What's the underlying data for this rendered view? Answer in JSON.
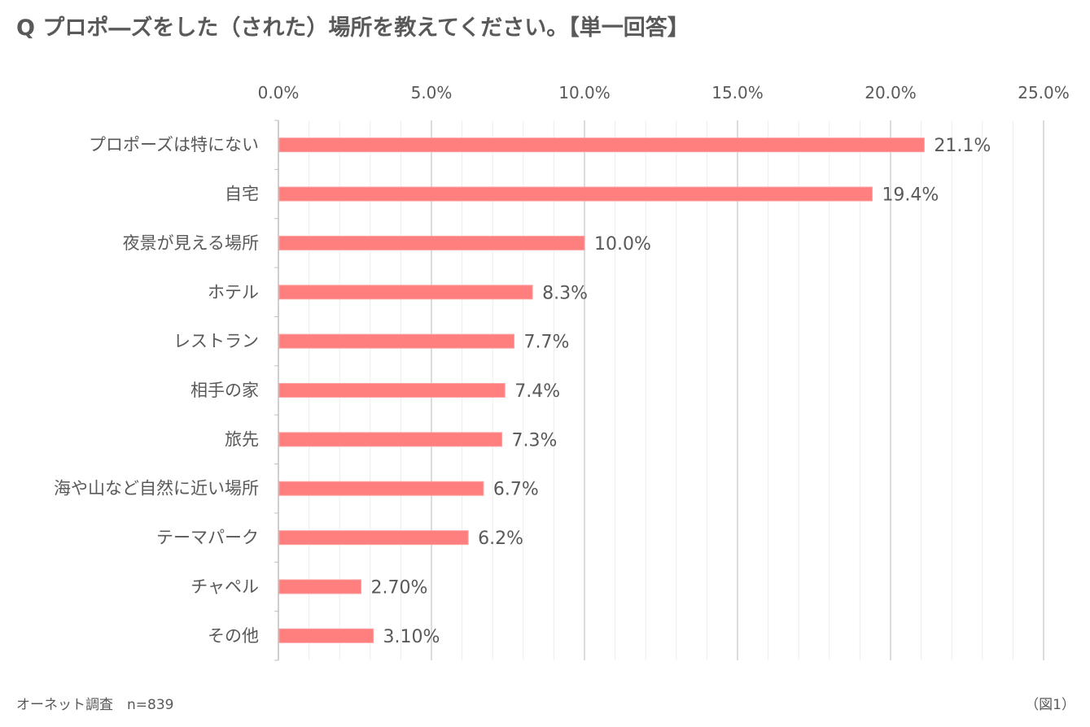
{
  "title": "Q プロポ―ズをした（された）場所を教えてください。【単一回答】",
  "footer": {
    "source": "オーネット調査　n=839",
    "figure_label": "（図1）"
  },
  "colors": {
    "bar": "#ff7f7f",
    "gridline_major": "#d0d0d0",
    "gridline_minor": "#ececec",
    "text": "#595959"
  },
  "chart_data": {
    "type": "bar",
    "orientation": "horizontal",
    "xlim": [
      0,
      25
    ],
    "x_ticks": [
      0,
      5,
      10,
      15,
      20,
      25
    ],
    "x_tick_labels": [
      "0.0%",
      "5.0%",
      "10.0%",
      "15.0%",
      "20.0%",
      "25.0%"
    ],
    "x_axis_position": "top",
    "grid": true,
    "categories": [
      "プロポーズは特にない",
      "自宅",
      "夜景が見える場所",
      "ホテル",
      "レストラン",
      "相手の家",
      "旅先",
      "海や山など自然に近い場所",
      "テーマパーク",
      "チャペル",
      "その他"
    ],
    "values": [
      21.1,
      19.4,
      10.0,
      8.3,
      7.7,
      7.4,
      7.3,
      6.7,
      6.2,
      2.7,
      3.1
    ],
    "data_labels": [
      "21.1%",
      "19.4%",
      "10.0%",
      "8.3%",
      "7.7%",
      "7.4%",
      "7.3%",
      "6.7%",
      "6.2%",
      "2.70%",
      "3.10%"
    ]
  }
}
